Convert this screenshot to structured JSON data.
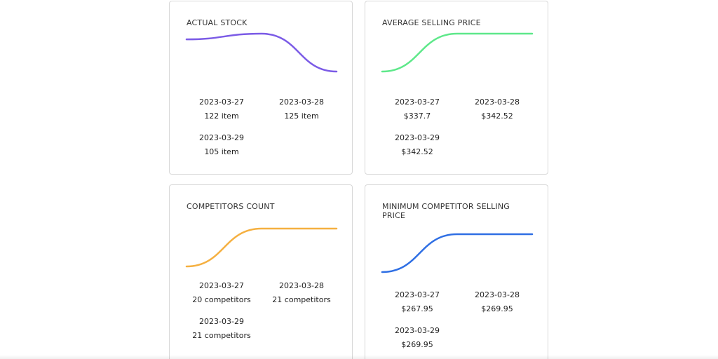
{
  "cards": [
    {
      "title": "ACTUAL STOCK",
      "color": "#7b5be6",
      "stats": [
        {
          "date": "2023-03-27",
          "value": "122 item"
        },
        {
          "date": "2023-03-28",
          "value": "125 item"
        },
        {
          "date": "2023-03-29",
          "value": "105 item"
        }
      ]
    },
    {
      "title": "AVERAGE SELLING PRICE",
      "color": "#5ee88a",
      "stats": [
        {
          "date": "2023-03-27",
          "value": "$337.7"
        },
        {
          "date": "2023-03-28",
          "value": "$342.52"
        },
        {
          "date": "2023-03-29",
          "value": "$342.52"
        }
      ]
    },
    {
      "title": "COMPETITORS COUNT",
      "color": "#f5b041",
      "stats": [
        {
          "date": "2023-03-27",
          "value": "20 competitors"
        },
        {
          "date": "2023-03-28",
          "value": "21 competitors"
        },
        {
          "date": "2023-03-29",
          "value": "21 competitors"
        }
      ]
    },
    {
      "title": "MINIMUM COMPETITOR SELLING PRICE",
      "color": "#2f6fe4",
      "stats": [
        {
          "date": "2023-03-27",
          "value": "$267.95"
        },
        {
          "date": "2023-03-28",
          "value": "$269.95"
        },
        {
          "date": "2023-03-29",
          "value": "$269.95"
        }
      ]
    }
  ],
  "chart_data": [
    {
      "type": "line",
      "x": [
        "2023-03-27",
        "2023-03-28",
        "2023-03-29"
      ],
      "series": [
        {
          "values": [
            122,
            125,
            105
          ]
        }
      ]
    },
    {
      "type": "line",
      "x": [
        "2023-03-27",
        "2023-03-28",
        "2023-03-29"
      ],
      "series": [
        {
          "values": [
            337.7,
            342.52,
            342.52
          ]
        }
      ]
    },
    {
      "type": "line",
      "x": [
        "2023-03-27",
        "2023-03-28",
        "2023-03-29"
      ],
      "series": [
        {
          "values": [
            20,
            21,
            21
          ]
        }
      ]
    },
    {
      "type": "line",
      "x": [
        "2023-03-27",
        "2023-03-28",
        "2023-03-29"
      ],
      "series": [
        {
          "values": [
            267.95,
            269.95,
            269.95
          ]
        }
      ]
    }
  ]
}
